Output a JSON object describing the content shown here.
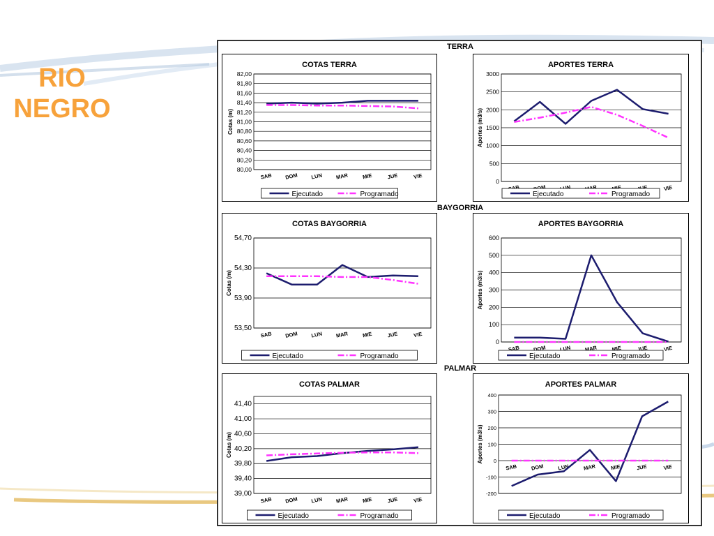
{
  "slide": {
    "title_line1": "RIO",
    "title_line2": "NEGRO"
  },
  "sections": {
    "terra": "TERRA",
    "baygorria": "BAYGORRIA",
    "palmar": "PALMAR"
  },
  "colors": {
    "title": "#f7a23b",
    "ejecutado": "#1c1c6e",
    "programado": "#ff33ff",
    "swoosh": "#c9d8ea",
    "gold": "#e0b14a"
  },
  "legend": {
    "ejecutado": "Ejecutado",
    "programado": "Programado"
  },
  "chart_data": [
    {
      "id": "cotas-terra",
      "type": "line",
      "title": "COTAS TERRA",
      "ylabel": "Cotas (m)",
      "ylim": [
        80.0,
        82.0
      ],
      "yticks": [
        "82,00",
        "81,80",
        "81,60",
        "81,40",
        "81,20",
        "81,00",
        "80,80",
        "80,60",
        "80,40",
        "80,20",
        "80,00"
      ],
      "categories": [
        "SAB",
        "DOM",
        "LUN",
        "MAR",
        "MIE",
        "JUE",
        "VIE"
      ],
      "series": [
        {
          "name": "Ejecutado",
          "values": [
            81.38,
            81.4,
            81.38,
            81.4,
            81.44,
            81.44,
            81.44
          ]
        },
        {
          "name": "Programado",
          "values": [
            81.35,
            81.35,
            81.34,
            81.34,
            81.33,
            81.32,
            81.28
          ]
        }
      ]
    },
    {
      "id": "aportes-terra",
      "type": "line",
      "title": "APORTES TERRA",
      "ylabel": "Aportes (m3/s)",
      "ylim": [
        0,
        3000
      ],
      "yticks": [
        "3000",
        "2500",
        "2000",
        "1500",
        "1000",
        "500",
        "0"
      ],
      "categories": [
        "SAB",
        "DOM",
        "LUN",
        "MAR",
        "MIE",
        "JUE",
        "VIE"
      ],
      "series": [
        {
          "name": "Ejecutado",
          "values": [
            1680,
            2220,
            1610,
            2250,
            2560,
            2020,
            1890
          ]
        },
        {
          "name": "Programado",
          "values": [
            1660,
            1780,
            1920,
            2080,
            1860,
            1550,
            1220
          ]
        }
      ]
    },
    {
      "id": "cotas-baygorria",
      "type": "line",
      "title": "COTAS BAYGORRIA",
      "ylabel": "Cotas (m)",
      "ylim": [
        53.5,
        54.7
      ],
      "yticks": [
        "54,70",
        "54,30",
        "53,90",
        "53,50"
      ],
      "categories": [
        "SAB",
        "DOM",
        "LUN",
        "MAR",
        "MIE",
        "JUE",
        "VIE"
      ],
      "series": [
        {
          "name": "Ejecutado",
          "values": [
            54.23,
            54.08,
            54.08,
            54.34,
            54.18,
            54.2,
            54.19
          ]
        },
        {
          "name": "Programado",
          "values": [
            54.19,
            54.19,
            54.19,
            54.18,
            54.18,
            54.14,
            54.09
          ]
        }
      ]
    },
    {
      "id": "aportes-baygorria",
      "type": "line",
      "title": "APORTES BAYGORRIA",
      "ylabel": "Aportes (m3/s)",
      "ylim": [
        0,
        600
      ],
      "yticks": [
        "600",
        "500",
        "400",
        "300",
        "200",
        "100",
        "0"
      ],
      "categories": [
        "SAB",
        "DOM",
        "LUN",
        "MAR",
        "MIE",
        "JUE",
        "VIE"
      ],
      "series": [
        {
          "name": "Ejecutado",
          "values": [
            25,
            25,
            18,
            500,
            230,
            50,
            2
          ]
        },
        {
          "name": "Programado",
          "values": [
            0,
            0,
            0,
            0,
            0,
            0,
            0
          ]
        }
      ]
    },
    {
      "id": "cotas-palmar",
      "type": "line",
      "title": "COTAS PALMAR",
      "ylabel": "Cotas (m)",
      "ylim": [
        39.0,
        41.6
      ],
      "yticks": [
        "41,40",
        "41,00",
        "40,60",
        "40,20",
        "39,80",
        "39,40",
        "39,00"
      ],
      "categories": [
        "SAB",
        "DOM",
        "LUN",
        "MAR",
        "MIE",
        "JUE",
        "VIE"
      ],
      "series": [
        {
          "name": "Ejecutado",
          "values": [
            39.87,
            39.97,
            40.0,
            40.08,
            40.14,
            40.18,
            40.24
          ]
        },
        {
          "name": "Programado",
          "values": [
            40.02,
            40.05,
            40.07,
            40.09,
            40.1,
            40.1,
            40.08
          ]
        }
      ]
    },
    {
      "id": "aportes-palmar",
      "type": "line",
      "title": "APORTES PALMAR",
      "ylabel": "Aportes (m3/s)",
      "ylim": [
        -200,
        400
      ],
      "yticks": [
        "400",
        "300",
        "200",
        "100",
        "0",
        "-100",
        "-200"
      ],
      "categories": [
        "SAB",
        "DOM",
        "LUN",
        "MAR",
        "MIE",
        "JUE",
        "VIE"
      ],
      "series": [
        {
          "name": "Ejecutado",
          "values": [
            -155,
            -85,
            -65,
            65,
            -125,
            270,
            360
          ]
        },
        {
          "name": "Programado",
          "values": [
            0,
            0,
            0,
            0,
            0,
            0,
            0
          ]
        }
      ]
    }
  ]
}
